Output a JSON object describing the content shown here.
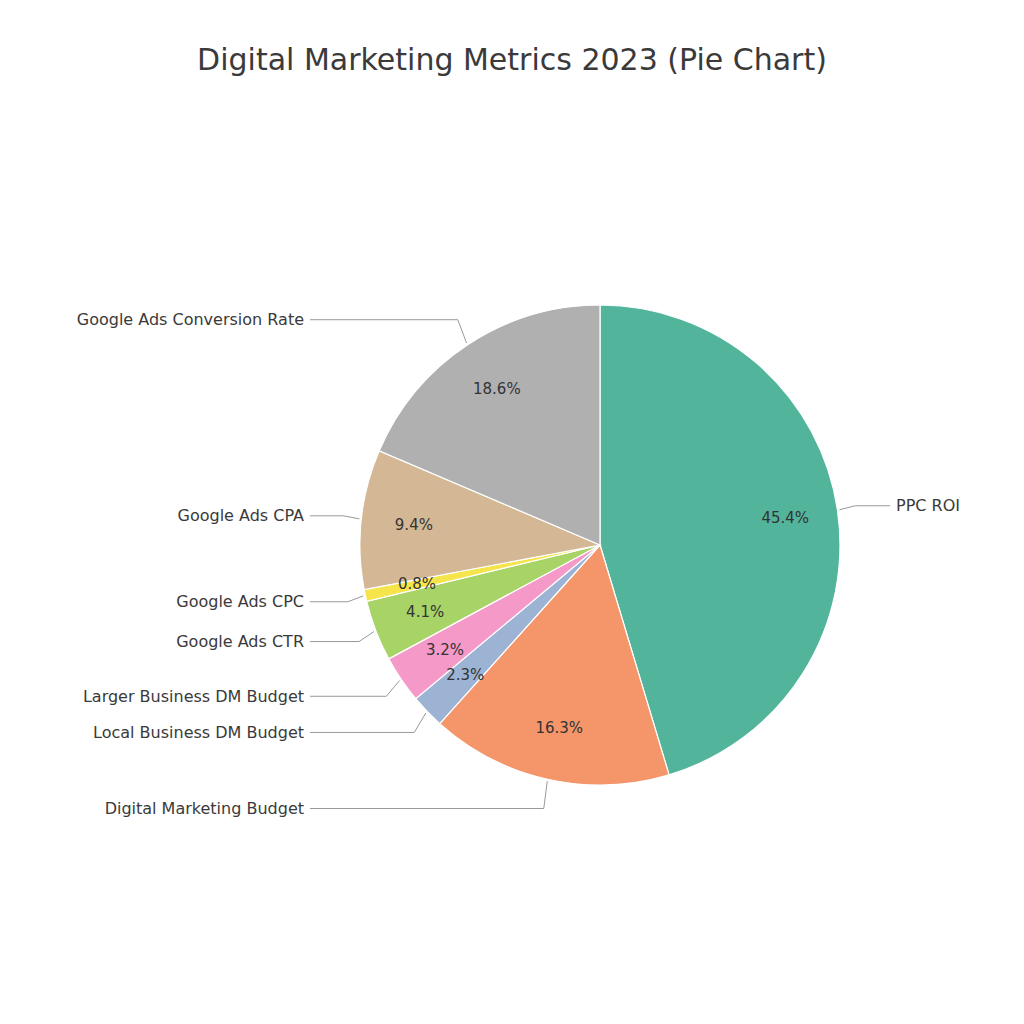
{
  "chart_data": {
    "type": "pie",
    "title": "Digital Marketing Metrics 2023 (Pie Chart)",
    "categories": [
      "PPC ROI",
      "Digital Marketing Budget",
      "Local Business DM Budget",
      "Larger Business DM Budget",
      "Google Ads CTR",
      "Google Ads CPC",
      "Google Ads CPA",
      "Google Ads Conversion Rate"
    ],
    "values": [
      45.4,
      16.3,
      2.3,
      3.2,
      4.1,
      0.8,
      9.4,
      18.6
    ],
    "value_labels": [
      "45.4%",
      "16.3%",
      "2.3%",
      "3.2%",
      "4.1%",
      "0.8%",
      "9.4%",
      "18.6%"
    ],
    "colors": [
      "#52b59b",
      "#f4956a",
      "#9db3d4",
      "#f499c8",
      "#a8d467",
      "#f5e44a",
      "#d4b896",
      "#b0b0b0"
    ],
    "data_labels": true
  }
}
